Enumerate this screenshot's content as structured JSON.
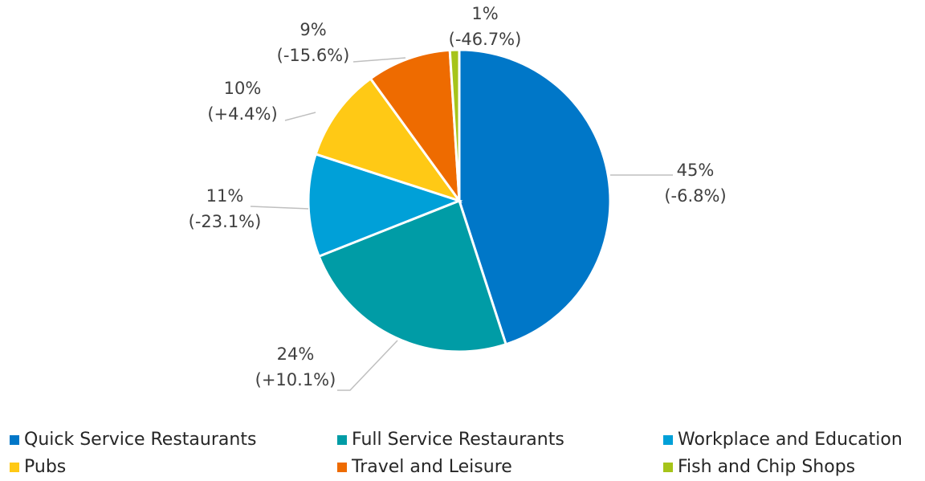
{
  "chart_data": {
    "type": "pie",
    "categories": [
      "Quick Service Restaurants",
      "Full Service Restaurants",
      "Workplace and Education",
      "Pubs",
      "Travel and Leisure",
      "Fish and Chip Shops"
    ],
    "values": [
      45,
      24,
      11,
      10,
      9,
      1
    ],
    "value_labels": [
      "45%",
      "24%",
      "11%",
      "10%",
      "9%",
      "1%"
    ],
    "changes": [
      "(-6.8%)",
      "(+10.1%)",
      "(-23.1%)",
      "(+4.4%)",
      "(-15.6%)",
      "(-46.7%)"
    ],
    "colors": [
      "#0077c8",
      "#009ca6",
      "#00a0d8",
      "#ffc915",
      "#ee6b00",
      "#a6c41a"
    ],
    "legend": "bottom"
  }
}
